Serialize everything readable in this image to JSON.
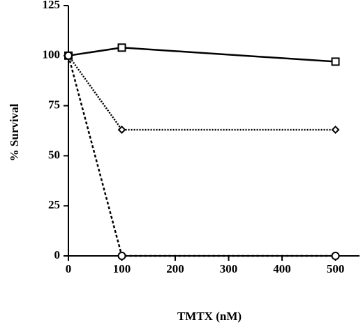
{
  "chart_data": {
    "type": "line",
    "x": [
      0,
      100,
      500
    ],
    "xlabel": "TMTX (nM)",
    "ylabel": "% Survival",
    "xlim": [
      0,
      545
    ],
    "xticks": [
      0,
      100,
      200,
      300,
      400,
      500
    ],
    "ylim": [
      0,
      125
    ],
    "yticks": [
      0,
      25,
      50,
      75,
      100,
      125
    ],
    "series": [
      {
        "color": "#000000",
        "marker": "square",
        "dash": "solid",
        "values": [
          100,
          104,
          97
        ]
      },
      {
        "color": "#000000",
        "marker": "diamond",
        "dash": "dotted",
        "values": [
          100,
          63,
          63
        ]
      },
      {
        "color": "#000000",
        "marker": "circle",
        "dash": "dashed",
        "values": [
          100,
          0,
          0
        ]
      }
    ]
  }
}
